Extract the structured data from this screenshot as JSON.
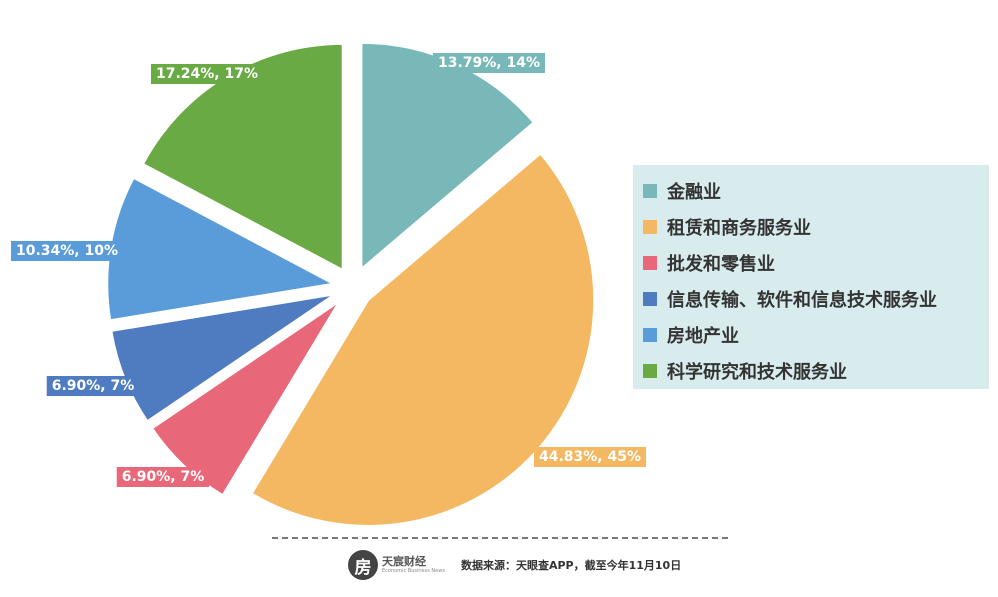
{
  "chart_data": {
    "type": "pie",
    "categories": [
      "金融业",
      "租赁和商务服务业",
      "批发和零售业",
      "信息传输、软件和信息技术服务业",
      "房地产业",
      "科学研究和技术服务业"
    ],
    "values": [
      13.79,
      44.83,
      6.9,
      6.9,
      10.34,
      17.24
    ],
    "data_labels": [
      "13.79%, 14%",
      "44.83%, 45%",
      "6.90%, 7%",
      "6.90%, 7%",
      "10.34%, 10%",
      "17.24%, 17%"
    ],
    "colors": [
      "#79b8b9",
      "#f5b862",
      "#e8687a",
      "#4f7cc1",
      "#5a9bd9",
      "#6aaa45"
    ],
    "legend_position": "right"
  },
  "legend": {
    "items": [
      "金融业",
      "租赁和商务服务业",
      "批发和零售业",
      "信息传输、软件和信息技术服务业",
      "房地产业",
      "科学研究和技术服务业"
    ]
  },
  "footer": {
    "logo_glyph": "房",
    "logo_name": "天宸财经",
    "logo_sub": "Economic Business News",
    "source": "数据来源：天眼查APP，截至今年11月10日"
  }
}
